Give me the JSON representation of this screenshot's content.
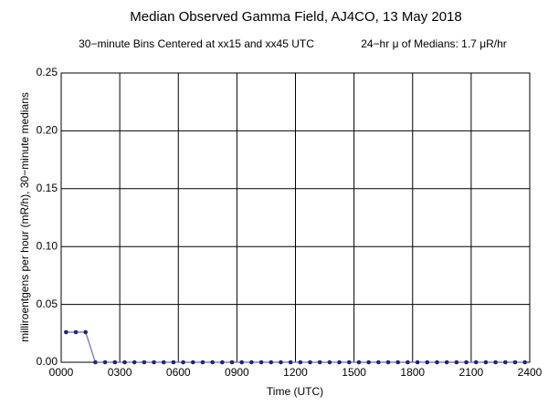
{
  "chart_data": {
    "type": "line",
    "title": "Median Observed Gamma Field, AJ4CO, 13 May 2018",
    "subtitle": "30−minute Bins Centered at xx15 and xx45 UTC",
    "subtitle2": "24−hr μ of Medians: 1.7 μR/hr",
    "x_label": "Time (UTC)",
    "y_label": "milliroentgens per hour (mR/h), 30−minute medians",
    "x": [
      0.25,
      0.75,
      1.25,
      1.75,
      2.25,
      2.75,
      3.25,
      3.75,
      4.25,
      4.75,
      5.25,
      5.75,
      6.25,
      6.75,
      7.25,
      7.75,
      8.25,
      8.75,
      9.25,
      9.75,
      10.25,
      10.75,
      11.25,
      11.75,
      12.25,
      12.75,
      13.25,
      13.75,
      14.25,
      14.75,
      15.25,
      15.75,
      16.25,
      16.75,
      17.25,
      17.75,
      18.25,
      18.75,
      19.25,
      19.75,
      20.25,
      20.75,
      21.25,
      21.75,
      22.25,
      22.75,
      23.25,
      23.75
    ],
    "series": [
      {
        "color": "#6b6bc4",
        "marker_color": "#23237a",
        "values": [
          0.026,
          0.026,
          0.026,
          0,
          0,
          0,
          0,
          0,
          0,
          0,
          0,
          0,
          0,
          0,
          0,
          0,
          0,
          0,
          0,
          0,
          0,
          0,
          0,
          0,
          0,
          0,
          0,
          0,
          0,
          0,
          0,
          0,
          0,
          0,
          0,
          0,
          0,
          0,
          0,
          0,
          0,
          0,
          0,
          0,
          0,
          0,
          0,
          0
        ]
      }
    ],
    "xlim": [
      0,
      24
    ],
    "xticks": [
      {
        "value": 0,
        "label": "0000"
      },
      {
        "value": 3,
        "label": "0300"
      },
      {
        "value": 6,
        "label": "0600"
      },
      {
        "value": 9,
        "label": "0900"
      },
      {
        "value": 12,
        "label": "1200"
      },
      {
        "value": 15,
        "label": "1500"
      },
      {
        "value": 18,
        "label": "1800"
      },
      {
        "value": 21,
        "label": "2100"
      },
      {
        "value": 24,
        "label": "2400"
      }
    ],
    "ylim": [
      0,
      0.25
    ],
    "yticks": [
      {
        "value": 0,
        "label": "0.00"
      },
      0.05,
      {
        "value": 0.1,
        "label": "0.10"
      },
      0.15,
      {
        "value": 0.2,
        "label": "0.20"
      },
      0.25
    ],
    "grid": true
  }
}
